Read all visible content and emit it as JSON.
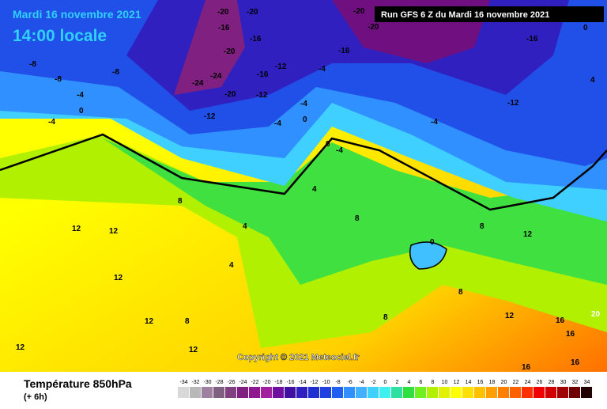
{
  "header": {
    "date": "Mardi 16 novembre 2021",
    "time": "14:00 locale",
    "run": "Run GFS 6 Z du Mardi 16 novembre 2021"
  },
  "map": {
    "copyright": "Copyright © 2021 Meteociel.fr",
    "contour_labels": [
      -20,
      -20,
      -20,
      -16,
      -16,
      -20,
      -16,
      -20,
      -12,
      -4,
      -8,
      -8,
      -8,
      -24,
      -24,
      -16,
      -20,
      -12,
      -16,
      0,
      4,
      -12,
      -4,
      0,
      -4,
      -4,
      -12,
      0,
      -4,
      -4,
      0,
      -4,
      4,
      4,
      8,
      12,
      12,
      12,
      12,
      12,
      12,
      8,
      4,
      8,
      8,
      12,
      16,
      20,
      16,
      16,
      0,
      8,
      8,
      12,
      16
    ]
  },
  "legend": {
    "title": "Température 850hPa",
    "subtitle": "(+ 6h)",
    "ticks": [
      -34,
      -32,
      -30,
      -28,
      -26,
      -24,
      -22,
      -20,
      -18,
      -16,
      -14,
      -12,
      -10,
      -8,
      -6,
      -4,
      -2,
      0,
      2,
      4,
      6,
      8,
      10,
      12,
      14,
      16,
      18,
      20,
      22,
      24,
      26,
      28,
      30,
      32,
      34
    ],
    "colors": [
      "#d8d8d8",
      "#b8b8b8",
      "#a080a0",
      "#806080",
      "#804080",
      "#802080",
      "#901890",
      "#a020a0",
      "#7010a0",
      "#4010a0",
      "#3020c0",
      "#2030d0",
      "#2040e0",
      "#2060f0",
      "#3090ff",
      "#40b0ff",
      "#40d0ff",
      "#40f0f0",
      "#30e0a0",
      "#30e040",
      "#70f020",
      "#b0f000",
      "#e0f000",
      "#ffff00",
      "#ffe000",
      "#ffc000",
      "#ffa000",
      "#ff8000",
      "#ff6000",
      "#ff3000",
      "#f00000",
      "#d00000",
      "#a00000",
      "#700000",
      "#200000"
    ]
  }
}
